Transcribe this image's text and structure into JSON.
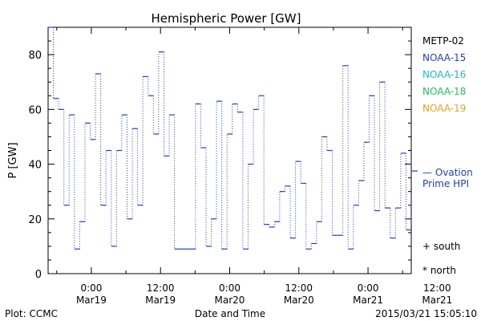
{
  "chart_data": {
    "type": "line",
    "title": "Hemispheric Power [GW]",
    "ylabel": "P [GW]",
    "xlabel": "Date and Time",
    "ylim": [
      0,
      90
    ],
    "y_ticks": [
      0,
      20,
      40,
      60,
      80
    ],
    "xlim_hours": [
      -7.5,
      55.5
    ],
    "x_ticks": [
      {
        "hour": 0,
        "time": "0:00",
        "date": "Mar19"
      },
      {
        "hour": 12,
        "time": "12:00",
        "date": "Mar19"
      },
      {
        "hour": 24,
        "time": "0:00",
        "date": "Mar20"
      },
      {
        "hour": 36,
        "time": "12:00",
        "date": "Mar20"
      },
      {
        "hour": 48,
        "time": "0:00",
        "date": "Mar21"
      },
      {
        "hour": 60,
        "time": "12:00",
        "date": "Mar21"
      }
    ],
    "legend": [
      {
        "name": "METP-02",
        "color": "#000000"
      },
      {
        "name": "NOAA-15",
        "color": "#1f3fbf"
      },
      {
        "name": "NOAA-16",
        "color": "#20b8d8"
      },
      {
        "name": "NOAA-18",
        "color": "#22c060"
      },
      {
        "name": "NOAA-19",
        "color": "#f0a020"
      }
    ],
    "model_label": [
      "— Ovation",
      "Prime HPI"
    ],
    "model_color": "#1f3fbf",
    "model_value": 37.5,
    "markers": [
      "+ south",
      "* north"
    ],
    "series": [
      {
        "name": "NOAA-15",
        "color": "#1f3fbf",
        "levels": [
          90,
          64,
          60,
          25,
          58,
          9,
          19,
          55,
          49,
          73,
          25,
          45,
          10,
          45,
          58,
          20,
          53,
          25,
          72,
          65,
          51,
          81,
          43,
          58,
          9,
          9,
          9,
          9,
          62,
          46,
          10,
          20,
          63,
          9,
          51,
          62,
          59,
          9,
          40,
          60,
          65,
          18,
          17,
          19,
          30,
          32,
          13,
          41,
          33,
          9,
          11,
          19,
          50,
          45,
          14,
          14,
          76,
          9,
          25,
          34,
          48,
          65,
          23,
          70,
          24,
          13,
          24,
          44,
          16
        ]
      }
    ]
  },
  "footer": {
    "left": "Plot: CCMC",
    "right": "2015/03/21 15:05:10"
  }
}
